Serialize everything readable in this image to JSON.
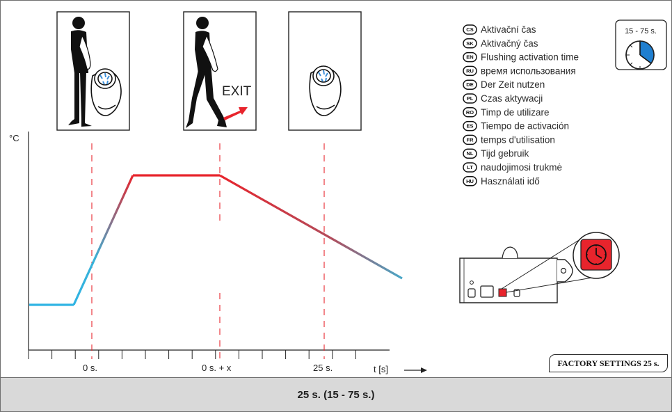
{
  "chart": {
    "y_unit": "°C",
    "x_axis_label": "t [s]",
    "ticks": {
      "start": "0 s.",
      "start_plus_x": "0 s. + x",
      "end": "25 s."
    }
  },
  "scenes": {
    "exit_label": "EXIT"
  },
  "timer_badge": "15 - 75 s.",
  "languages": [
    {
      "code": "CS",
      "label": "Aktivační čas"
    },
    {
      "code": "SK",
      "label": "Aktivačný čas"
    },
    {
      "code": "EN",
      "label": "Flushing activation time"
    },
    {
      "code": "RU",
      "label": "время использования"
    },
    {
      "code": "DE",
      "label": "Der Zeit nutzen"
    },
    {
      "code": "PL",
      "label": "Czas aktywacji"
    },
    {
      "code": "RO",
      "label": "Timp de utilizare"
    },
    {
      "code": "ES",
      "label": "Tiempo de activación"
    },
    {
      "code": "FR",
      "label": "temps d'utilisation"
    },
    {
      "code": "NL",
      "label": "Tijd gebruik"
    },
    {
      "code": "LT",
      "label": "naudojimosi trukmė"
    },
    {
      "code": "HU",
      "label": "Használati idő"
    }
  ],
  "factory_settings": "FACTORY SETTINGS 25 s.",
  "footer": "25 s. (15 - 75 s.)",
  "colors": {
    "cold": "#2fb3e3",
    "hot": "#e8242c",
    "guide": "#e8242c",
    "timer_fill": "#1f7fd0",
    "button_red": "#e8242c"
  }
}
